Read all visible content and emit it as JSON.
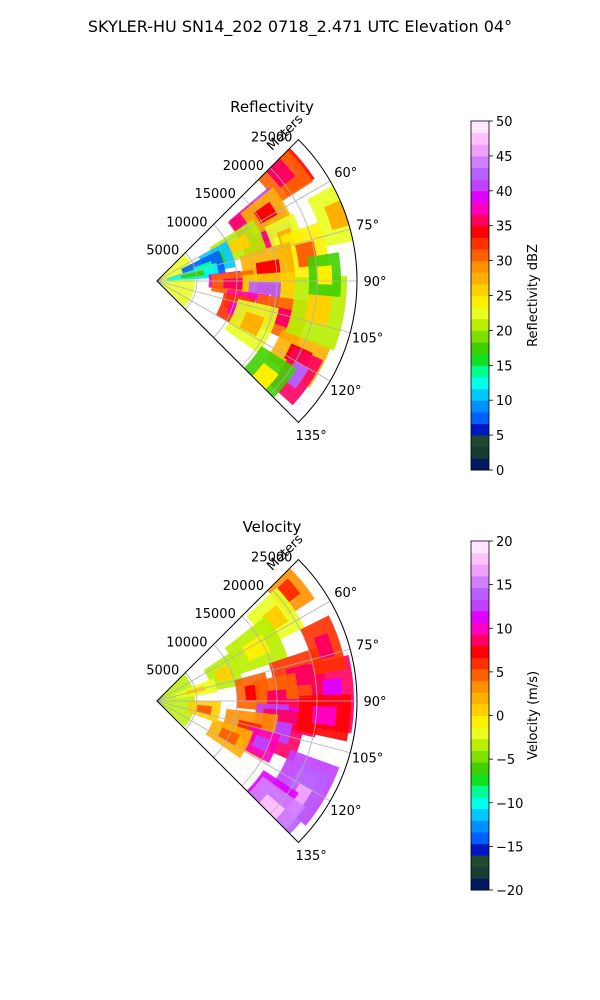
{
  "figure_title": "SKYLER-HU  SN14_202  0718_2.471 UTC Elevation 04°",
  "chart_data": [
    {
      "type": "heatmap",
      "subtype": "polar-sector (PPI radar scan)",
      "title": "Reflectivity",
      "range_label": "Meters",
      "range_ticks": [
        "5000",
        "10000",
        "15000",
        "20000",
        "25000"
      ],
      "range_tick_values": [
        5000,
        10000,
        15000,
        20000,
        25000
      ],
      "range_max": 25000,
      "azimuth_ticks": [
        "60°",
        "75°",
        "90°",
        "105°",
        "120°",
        "135°"
      ],
      "azimuth_tick_values": [
        60,
        75,
        90,
        105,
        120,
        135
      ],
      "azimuth_range": [
        45,
        135
      ],
      "grid": true,
      "colorbar": {
        "label": "Reflectivity dBZ",
        "min": 0,
        "max": 50,
        "ticks": [
          "0",
          "5",
          "10",
          "15",
          "20",
          "25",
          "30",
          "35",
          "40",
          "45",
          "50"
        ],
        "colors": [
          "#001a60",
          "#163c35",
          "#204a30",
          "#0018c0",
          "#0060ff",
          "#0090ff",
          "#00c8ff",
          "#00ffe8",
          "#00ff90",
          "#10e020",
          "#40d000",
          "#80e000",
          "#b8f000",
          "#e8ff20",
          "#fff000",
          "#ffd000",
          "#ffb000",
          "#ff9000",
          "#ff6000",
          "#ff3000",
          "#ff0000",
          "#ff0060",
          "#ff00c0",
          "#e000ff",
          "#c040ff",
          "#b860ff",
          "#d080ff",
          "#f0a0ff",
          "#ffc0ff",
          "#ffe8ff"
        ]
      },
      "cells": [
        {
          "az": 50,
          "r": 21500,
          "v": 34
        },
        {
          "az": 49,
          "r": 20500,
          "v": 30
        },
        {
          "az": 60,
          "r": 15000,
          "v": 40
        },
        {
          "az": 62,
          "r": 13500,
          "v": 35
        },
        {
          "az": 58,
          "r": 16000,
          "v": 28
        },
        {
          "az": 66,
          "r": 11000,
          "v": 20
        },
        {
          "az": 70,
          "r": 8000,
          "v": 10
        },
        {
          "az": 75,
          "r": 6000,
          "v": 8
        },
        {
          "az": 80,
          "r": 4500,
          "v": 12
        },
        {
          "az": 72,
          "r": 17000,
          "v": 22
        },
        {
          "az": 80,
          "r": 19000,
          "v": 24
        },
        {
          "az": 85,
          "r": 14000,
          "v": 28
        },
        {
          "az": 90,
          "r": 8500,
          "v": 38
        },
        {
          "az": 92,
          "r": 9500,
          "v": 30
        },
        {
          "az": 96,
          "r": 14000,
          "v": 26
        },
        {
          "az": 102,
          "r": 13500,
          "v": 42
        },
        {
          "az": 104,
          "r": 11500,
          "v": 38
        },
        {
          "az": 106,
          "r": 16000,
          "v": 30
        },
        {
          "az": 110,
          "r": 10500,
          "v": 32
        },
        {
          "az": 114,
          "r": 13000,
          "v": 22
        },
        {
          "az": 118,
          "r": 20000,
          "v": 28
        },
        {
          "az": 124,
          "r": 21000,
          "v": 36
        },
        {
          "az": 132,
          "r": 18000,
          "v": 18
        },
        {
          "az": 100,
          "r": 20500,
          "v": 20
        },
        {
          "az": 88,
          "r": 21000,
          "v": 18
        },
        {
          "az": 70,
          "r": 24000,
          "v": 22
        }
      ]
    },
    {
      "type": "heatmap",
      "subtype": "polar-sector (PPI radar scan)",
      "title": "Velocity",
      "range_label": "Meters",
      "range_ticks": [
        "5000",
        "10000",
        "15000",
        "20000",
        "25000"
      ],
      "range_tick_values": [
        5000,
        10000,
        15000,
        20000,
        25000
      ],
      "range_max": 25000,
      "azimuth_ticks": [
        "60°",
        "75°",
        "90°",
        "105°",
        "120°",
        "135°"
      ],
      "azimuth_tick_values": [
        60,
        75,
        90,
        105,
        120,
        135
      ],
      "azimuth_range": [
        45,
        135
      ],
      "grid": true,
      "colorbar": {
        "label": "Velocity (m/s)",
        "min": -20,
        "max": 20,
        "ticks": [
          "−20",
          "−15",
          "−10",
          "−5",
          "0",
          "5",
          "10",
          "15",
          "20"
        ],
        "colors": [
          "#001a60",
          "#163c35",
          "#204a30",
          "#0018c0",
          "#0060ff",
          "#0090ff",
          "#00c8ff",
          "#00ffe8",
          "#00ff90",
          "#10e020",
          "#40d000",
          "#80e000",
          "#b8f000",
          "#e8ff20",
          "#fff000",
          "#ffd000",
          "#ffb000",
          "#ff9000",
          "#ff6000",
          "#ff3000",
          "#ff0000",
          "#ff0060",
          "#ff00c0",
          "#e000ff",
          "#c040ff",
          "#b860ff",
          "#d080ff",
          "#f0a0ff",
          "#ffc0ff",
          "#ffe8ff"
        ]
      },
      "cells": [
        {
          "az": 50,
          "r": 21500,
          "v": 3
        },
        {
          "az": 55,
          "r": 18000,
          "v": -2
        },
        {
          "az": 62,
          "r": 14000,
          "v": -4
        },
        {
          "az": 68,
          "r": 9000,
          "v": -3
        },
        {
          "az": 75,
          "r": 5000,
          "v": -2
        },
        {
          "az": 80,
          "r": 18000,
          "v": 6
        },
        {
          "az": 85,
          "r": 12000,
          "v": 4
        },
        {
          "az": 90,
          "r": 15000,
          "v": 5
        },
        {
          "az": 96,
          "r": 17000,
          "v": 8
        },
        {
          "az": 100,
          "r": 14500,
          "v": 12
        },
        {
          "az": 104,
          "r": 16000,
          "v": 9
        },
        {
          "az": 108,
          "r": 12000,
          "v": 3
        },
        {
          "az": 112,
          "r": 14000,
          "v": 10
        },
        {
          "az": 116,
          "r": 10000,
          "v": 2
        },
        {
          "az": 120,
          "r": 21000,
          "v": 12
        },
        {
          "az": 125,
          "r": 21500,
          "v": 14
        },
        {
          "az": 130,
          "r": 18500,
          "v": 11
        },
        {
          "az": 134,
          "r": 19500,
          "v": 15
        },
        {
          "az": 100,
          "r": 6000,
          "v": 1
        },
        {
          "az": 88,
          "r": 22000,
          "v": 8
        },
        {
          "az": 95,
          "r": 21000,
          "v": 7
        },
        {
          "az": 72,
          "r": 22000,
          "v": 6
        }
      ]
    }
  ]
}
